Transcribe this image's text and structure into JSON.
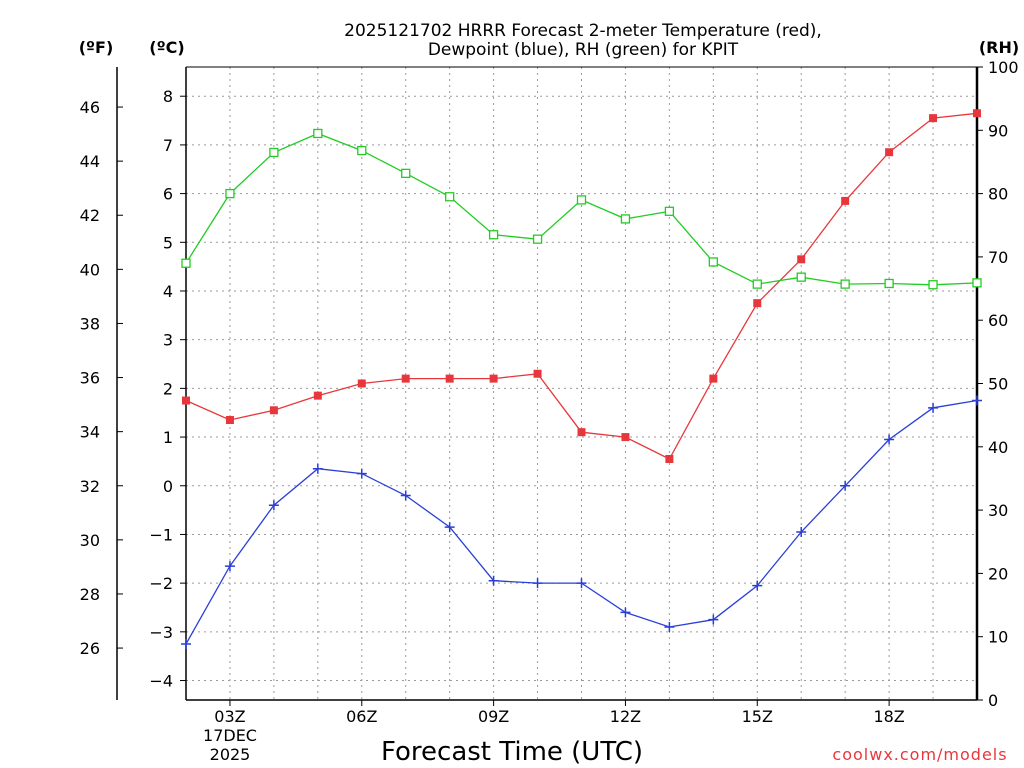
{
  "chart_data": {
    "type": "line",
    "title": "2025121702 HRRR Forecast 2-meter Temperature (red),",
    "subtitle": "Dewpoint (blue), RH (green) for KPIT",
    "xlabel": "Forecast Time (UTC)",
    "date_label": {
      "day": "17DEC",
      "year": "2025"
    },
    "credit": "coolwx.com/models",
    "left_outer_axis": {
      "unit": "(ºF)",
      "ticks": [
        "26",
        "28",
        "30",
        "32",
        "34",
        "36",
        "38",
        "40",
        "42",
        "44",
        "46"
      ]
    },
    "left_axis": {
      "unit": "(ºC)",
      "ylim": [
        -4.4,
        8.6
      ],
      "ticks": [
        "-4",
        "-3",
        "-2",
        "-1",
        "0",
        "1",
        "2",
        "3",
        "4",
        "5",
        "6",
        "7",
        "8"
      ]
    },
    "right_axis": {
      "unit": "(RH)",
      "ylim": [
        0,
        100
      ],
      "ticks": [
        "0",
        "10",
        "20",
        "30",
        "40",
        "50",
        "60",
        "70",
        "80",
        "90",
        "100"
      ]
    },
    "x_hours": [
      2,
      3,
      4,
      5,
      6,
      7,
      8,
      9,
      10,
      11,
      12,
      13,
      14,
      15,
      16,
      17,
      18,
      19,
      20
    ],
    "x_ticks": [
      {
        "hour": 3,
        "label": "03Z"
      },
      {
        "hour": 6,
        "label": "06Z"
      },
      {
        "hour": 9,
        "label": "09Z"
      },
      {
        "hour": 12,
        "label": "12Z"
      },
      {
        "hour": 15,
        "label": "15Z"
      },
      {
        "hour": 18,
        "label": "18Z"
      }
    ],
    "grid": true,
    "series": [
      {
        "name": "Temperature",
        "axis": "C",
        "color": "#e8373c",
        "marker": "filled-square",
        "values": [
          1.75,
          1.35,
          1.55,
          1.85,
          2.1,
          2.2,
          2.2,
          2.2,
          2.3,
          1.1,
          1.0,
          0.55,
          2.2,
          3.75,
          4.65,
          5.85,
          6.85,
          7.55,
          7.65
        ]
      },
      {
        "name": "Dewpoint",
        "axis": "C",
        "color": "#2a3fd8",
        "marker": "plus",
        "values": [
          -3.25,
          -1.65,
          -0.4,
          0.35,
          0.25,
          -0.2,
          -0.85,
          -1.95,
          -2.0,
          -2.0,
          -2.6,
          -2.9,
          -2.75,
          -2.05,
          -0.95,
          0.0,
          0.95,
          1.6,
          1.75
        ]
      },
      {
        "name": "RH",
        "axis": "RH",
        "color": "#22cc22",
        "marker": "open-square",
        "values": [
          69,
          80,
          86.5,
          89.5,
          86.8,
          83.2,
          79.5,
          73.5,
          72.8,
          79,
          76,
          77.2,
          69.2,
          65.7,
          66.8,
          65.7,
          65.8,
          65.6,
          65.9
        ]
      }
    ]
  }
}
